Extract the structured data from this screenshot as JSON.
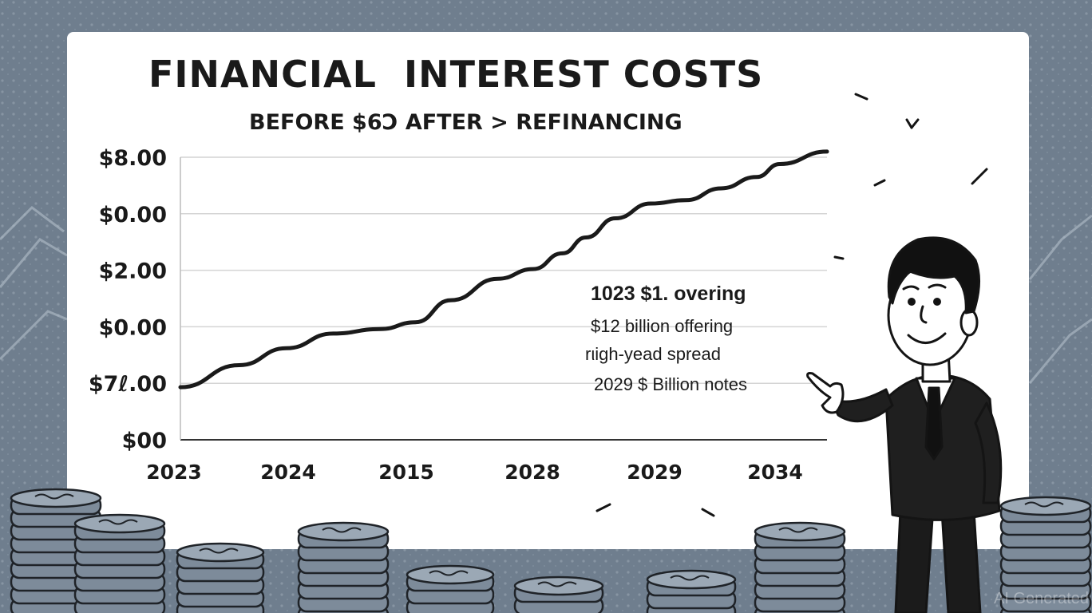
{
  "title": "FINANCIAL  INTEREST COSTS",
  "subtitle": "BEFORE $6Ɔ AFTER > REFINANCING",
  "annotation": {
    "heading": "1023 $1. overing",
    "lines": [
      "$12 billion offering",
      "rιigh-yead spread",
      "2029 $ Billion notes"
    ]
  },
  "watermark": "AI Generated",
  "colors": {
    "background": "#6f7e8e",
    "panel": "#ffffff",
    "line": "#1a1a1a",
    "grid": "#d4d4d4",
    "coin": "#7d8b9a",
    "coin_edge": "#1f2328"
  },
  "icons": [
    "dollar-coin-stack-icon",
    "businessman-pointing-icon",
    "sparkle-dash-icon"
  ],
  "chart_data": {
    "type": "line",
    "title": "FINANCIAL  INTEREST COSTS",
    "subtitle": "BEFORE $6Ɔ AFTER > REFINANCING",
    "xlabel": "",
    "ylabel": "",
    "y_tick_labels": [
      "$8.00",
      "$0.00",
      "$2.00",
      "$0.00",
      "$7ℓ.00",
      "$00"
    ],
    "x_tick_labels": [
      "2023",
      "2024",
      "2015",
      "2028",
      "2029",
      "2034"
    ],
    "ylim": [
      0,
      5
    ],
    "xlim": [
      0,
      5.5
    ],
    "grid": true,
    "series": [
      {
        "name": "Interest costs",
        "x": [
          0,
          0.5,
          0.9,
          1.3,
          1.7,
          2.0,
          2.3,
          2.7,
          3.0,
          3.25,
          3.45,
          3.7,
          4.0,
          4.3,
          4.6,
          4.9,
          5.1,
          5.5
        ],
        "y": [
          0.93,
          1.32,
          1.62,
          1.88,
          1.96,
          2.08,
          2.47,
          2.85,
          3.02,
          3.3,
          3.58,
          3.92,
          4.18,
          4.24,
          4.45,
          4.65,
          4.88,
          5.1
        ]
      }
    ]
  }
}
